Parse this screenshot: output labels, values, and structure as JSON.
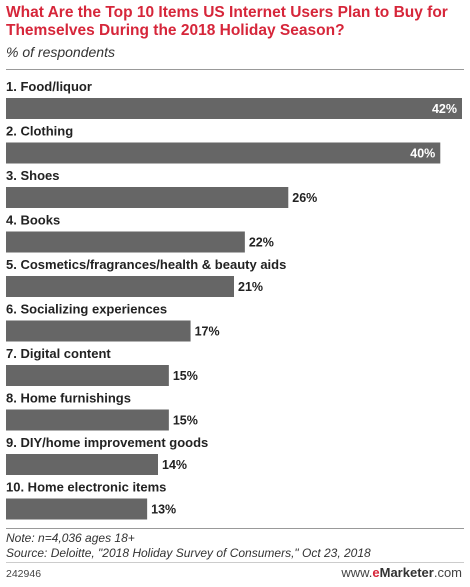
{
  "title": "What Are the Top 10 Items US Internet Users Plan to Buy for Themselves During the 2018 Holiday Season?",
  "subtitle": "% of respondents",
  "note": "Note: n=4,036 ages 18+",
  "source": "Source: Deloitte, \"2018 Holiday Survey of Consumers,\" Oct 23, 2018",
  "footer_id": "242946",
  "brand": {
    "prefix": "www.",
    "e": "e",
    "name": "Marketer",
    "suffix": ".com"
  },
  "colors": {
    "bar": "#666666",
    "title": "#d6263a"
  },
  "chart_data": {
    "type": "bar",
    "orientation": "horizontal",
    "categories": [
      "1. Food/liquor",
      "2. Clothing",
      "3. Shoes",
      "4. Books",
      "5. Cosmetics/fragrances/health & beauty aids",
      "6. Socializing experiences",
      "7. Digital content",
      "8. Home furnishings",
      "9. DIY/home improvement goods",
      "10. Home electronic items"
    ],
    "values": [
      42,
      40,
      26,
      22,
      21,
      17,
      15,
      15,
      14,
      13
    ],
    "value_labels": [
      "42%",
      "40%",
      "26%",
      "22%",
      "21%",
      "17%",
      "15%",
      "15%",
      "14%",
      "13%"
    ],
    "xlim": [
      0,
      42
    ],
    "grid": false
  }
}
